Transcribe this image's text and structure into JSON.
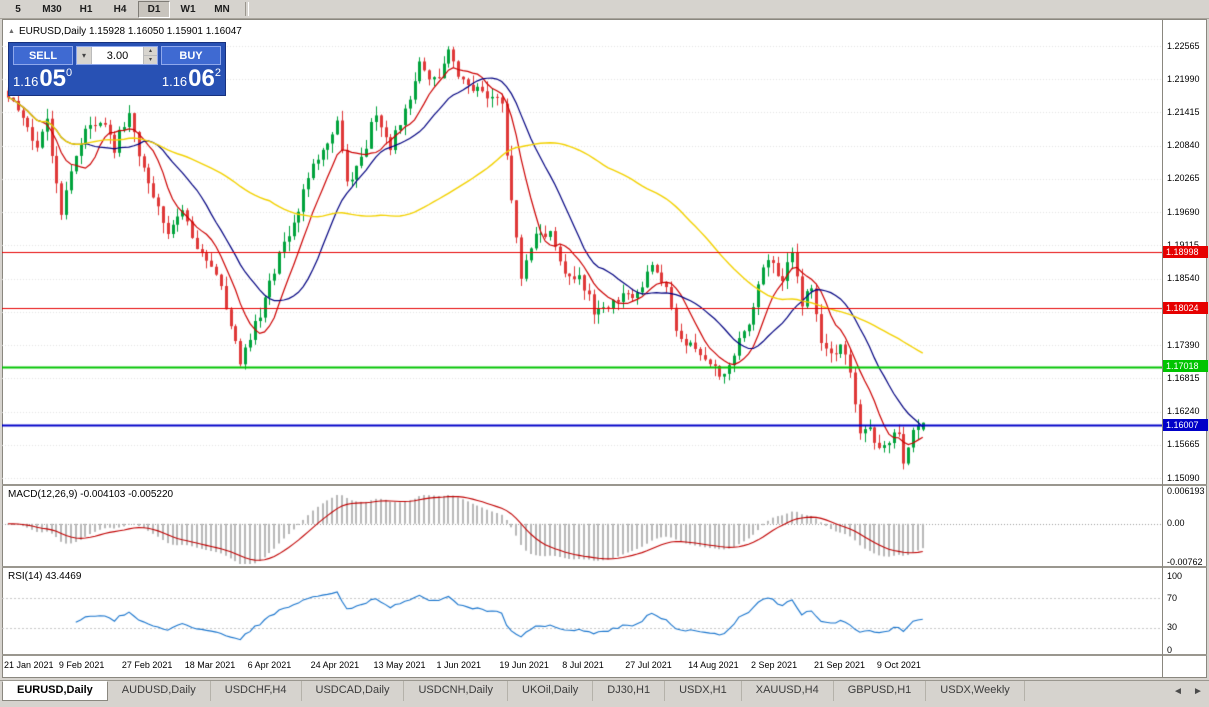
{
  "toolbar": {
    "timeframes": [
      "5",
      "M30",
      "H1",
      "H4",
      "D1",
      "W1",
      "MN"
    ],
    "active_timeframe": "D1"
  },
  "chart": {
    "title": "EURUSD,Daily 1.15928 1.16050 1.15901 1.16047",
    "collapse_icon": "▲"
  },
  "trade_panel": {
    "sell_label": "SELL",
    "buy_label": "BUY",
    "volume": "3.00",
    "volume_dropdown_icon": "▾",
    "volume_up_icon": "▴",
    "volume_down_icon": "▾",
    "sell_price_main": "1.16",
    "sell_price_big": "05",
    "sell_price_sup": "0",
    "buy_price_main": "1.16",
    "buy_price_big": "06",
    "buy_price_sup": "2"
  },
  "price_axis": {
    "ticks": [
      "1.22565",
      "1.21990",
      "1.21415",
      "1.20840",
      "1.20265",
      "1.19690",
      "1.19115",
      "1.18540",
      "1.17965",
      "1.17390",
      "1.16815",
      "1.16240",
      "1.15665",
      "1.15090"
    ]
  },
  "levels": [
    {
      "label": "1.18998",
      "value": 1.18998,
      "color": "#e60000",
      "width": 1
    },
    {
      "label": "1.18024",
      "value": 1.18024,
      "color": "#e60000",
      "width": 1
    },
    {
      "label": "1.17018",
      "value": 1.17018,
      "color": "#00c400",
      "width": 2
    },
    {
      "label": "1.16007",
      "value": 1.16007,
      "color": "#0000c8",
      "width": 2
    }
  ],
  "macd_panel": {
    "label": "MACD(12,26,9) -0.004103 -0.005220",
    "ticks": [
      {
        "label": "0.006193",
        "value": 0.006193
      },
      {
        "label": "0.00",
        "value": 0
      },
      {
        "label": "-0.00762",
        "value": -0.00762
      }
    ]
  },
  "rsi_panel": {
    "label": "RSI(14) 43.4469",
    "ticks": [
      {
        "label": "100",
        "value": 100
      },
      {
        "label": "70",
        "value": 70
      },
      {
        "label": "30",
        "value": 30
      },
      {
        "label": "0",
        "value": 0
      }
    ],
    "levels": [
      70,
      30
    ]
  },
  "x_axis": {
    "labels": [
      "21 Jan 2021",
      "9 Feb 2021",
      "27 Feb 2021",
      "18 Mar 2021",
      "6 Apr 2021",
      "24 Apr 2021",
      "13 May 2021",
      "1 Jun 2021",
      "19 Jun 2021",
      "8 Jul 2021",
      "27 Jul 2021",
      "14 Aug 2021",
      "2 Sep 2021",
      "21 Sep 2021",
      "9 Oct 2021"
    ]
  },
  "tabbar": {
    "tabs": [
      "EURUSD,Daily",
      "AUDUSD,Daily",
      "USDCHF,H4",
      "USDCAD,Daily",
      "USDCNH,Daily",
      "UKOil,Daily",
      "DJ30,H1",
      "USDX,H1",
      "XAUUSD,H4",
      "GBPUSD,H1",
      "USDX,Weekly"
    ],
    "active_tab": "EURUSD,Daily",
    "scroll_left": "◄",
    "scroll_right": "►"
  },
  "chart_data": {
    "type": "candlestick",
    "symbol": "EURUSD",
    "timeframe": "Daily",
    "bars": 190,
    "price_range": [
      1.1509,
      1.22565
    ],
    "last": {
      "open": 1.15928,
      "high": 1.1605,
      "low": 1.15901,
      "close": 1.16047
    },
    "close_anchors": [
      [
        0,
        1.2165
      ],
      [
        3,
        1.2128
      ],
      [
        6,
        1.208
      ],
      [
        8,
        1.2122
      ],
      [
        11,
        1.1962
      ],
      [
        13,
        1.204
      ],
      [
        16,
        1.2118
      ],
      [
        19,
        1.2128
      ],
      [
        22,
        1.2078
      ],
      [
        25,
        1.2145
      ],
      [
        27,
        1.2068
      ],
      [
        30,
        1.2
      ],
      [
        33,
        1.1925
      ],
      [
        36,
        1.1982
      ],
      [
        39,
        1.1905
      ],
      [
        42,
        1.1878
      ],
      [
        45,
        1.1808
      ],
      [
        48,
        1.1712
      ],
      [
        50,
        1.1758
      ],
      [
        53,
        1.1815
      ],
      [
        56,
        1.19
      ],
      [
        59,
        1.1948
      ],
      [
        62,
        1.2032
      ],
      [
        65,
        1.208
      ],
      [
        68,
        1.2122
      ],
      [
        70,
        1.202
      ],
      [
        73,
        1.2062
      ],
      [
        76,
        1.2142
      ],
      [
        79,
        1.2078
      ],
      [
        82,
        1.2148
      ],
      [
        85,
        1.2228
      ],
      [
        88,
        1.2195
      ],
      [
        91,
        1.225
      ],
      [
        93,
        1.22
      ],
      [
        96,
        1.2185
      ],
      [
        99,
        1.2178
      ],
      [
        102,
        1.2155
      ],
      [
        104,
        1.1985
      ],
      [
        106,
        1.1865
      ],
      [
        109,
        1.1925
      ],
      [
        112,
        1.193
      ],
      [
        115,
        1.1855
      ],
      [
        118,
        1.1868
      ],
      [
        121,
        1.1795
      ],
      [
        124,
        1.1805
      ],
      [
        127,
        1.1825
      ],
      [
        130,
        1.183
      ],
      [
        133,
        1.187
      ],
      [
        136,
        1.1835
      ],
      [
        139,
        1.1745
      ],
      [
        142,
        1.1732
      ],
      [
        145,
        1.171
      ],
      [
        148,
        1.168
      ],
      [
        151,
        1.1745
      ],
      [
        154,
        1.18
      ],
      [
        156,
        1.1875
      ],
      [
        158,
        1.188
      ],
      [
        160,
        1.185
      ],
      [
        162,
        1.1902
      ],
      [
        164,
        1.181
      ],
      [
        166,
        1.183
      ],
      [
        168,
        1.1745
      ],
      [
        170,
        1.1725
      ],
      [
        172,
        1.174
      ],
      [
        174,
        1.169
      ],
      [
        176,
        1.158
      ],
      [
        178,
        1.16
      ],
      [
        180,
        1.1555
      ],
      [
        182,
        1.157
      ],
      [
        184,
        1.159
      ],
      [
        185,
        1.153
      ],
      [
        186,
        1.1555
      ],
      [
        187,
        1.1595
      ],
      [
        188,
        1.16
      ],
      [
        189,
        1.16047
      ]
    ],
    "up_color": "#00a33c",
    "down_color": "#df3838",
    "moving_averages": [
      {
        "name": "fast-sma",
        "period": 8,
        "color": "#cc0000"
      },
      {
        "name": "mid-sma",
        "period": 17,
        "color": "#000080"
      },
      {
        "name": "slow-sma",
        "period": 55,
        "color": "#f2d100"
      }
    ],
    "macd": {
      "fast": 12,
      "slow": 26,
      "signal": 9,
      "histogram_color": "#b8b8b8",
      "signal_color": "#c00000",
      "last_main": -0.004103,
      "last_signal": -0.00522
    },
    "rsi": {
      "period": 14,
      "color": "#1874cd",
      "last": 43.4469
    }
  }
}
